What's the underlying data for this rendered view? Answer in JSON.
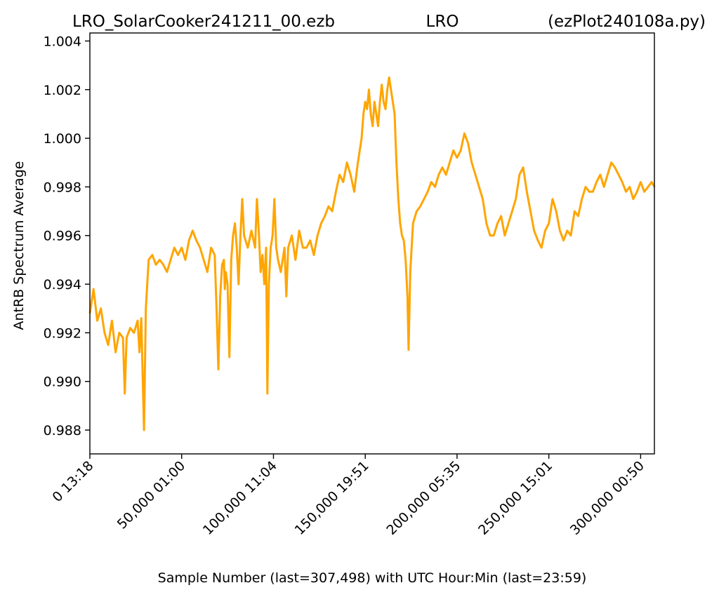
{
  "chart_data": {
    "type": "line",
    "title_left": "LRO_SolarCooker241211_00.ezb",
    "title_center": "LRO",
    "title_right": "(ezPlot240108a.py)",
    "xlabel": "Sample Number (last=307,498) with UTC Hour:Min (last=23:59)",
    "ylabel": "AntRB Spectrum Average",
    "xlim": [
      0,
      307498
    ],
    "ylim": [
      0.98702,
      1.00433
    ],
    "x_ticks": [
      {
        "value": 0,
        "label": "0  13:18"
      },
      {
        "value": 50000,
        "label": "50,000  01:00"
      },
      {
        "value": 100000,
        "label": "100,000  11:04"
      },
      {
        "value": 150000,
        "label": "150,000  19:51"
      },
      {
        "value": 200000,
        "label": "200,000  05:35"
      },
      {
        "value": 250000,
        "label": "250,000  15:01"
      },
      {
        "value": 300000,
        "label": "300,000  00:50"
      }
    ],
    "y_ticks": [
      {
        "value": 0.988,
        "label": "0.988"
      },
      {
        "value": 0.99,
        "label": "0.990"
      },
      {
        "value": 0.992,
        "label": "0.992"
      },
      {
        "value": 0.994,
        "label": "0.994"
      },
      {
        "value": 0.996,
        "label": "0.996"
      },
      {
        "value": 0.998,
        "label": "0.998"
      },
      {
        "value": 1.0,
        "label": "1.000"
      },
      {
        "value": 1.002,
        "label": "1.002"
      },
      {
        "value": 1.004,
        "label": "1.004"
      }
    ],
    "grid": false,
    "series": [
      {
        "color": "#ffa500",
        "points": [
          [
            0,
            0.9928
          ],
          [
            2000,
            0.9938
          ],
          [
            4000,
            0.9925
          ],
          [
            6000,
            0.993
          ],
          [
            8000,
            0.992
          ],
          [
            10000,
            0.9915
          ],
          [
            12000,
            0.9925
          ],
          [
            14000,
            0.9912
          ],
          [
            16000,
            0.992
          ],
          [
            18000,
            0.9918
          ],
          [
            19000,
            0.9895
          ],
          [
            20000,
            0.9918
          ],
          [
            22000,
            0.9922
          ],
          [
            24000,
            0.992
          ],
          [
            26000,
            0.9925
          ],
          [
            27000,
            0.9912
          ],
          [
            28000,
            0.9926
          ],
          [
            29500,
            0.988
          ],
          [
            30500,
            0.993
          ],
          [
            32000,
            0.995
          ],
          [
            34000,
            0.9952
          ],
          [
            36000,
            0.9948
          ],
          [
            38000,
            0.995
          ],
          [
            40000,
            0.9948
          ],
          [
            42000,
            0.9945
          ],
          [
            44000,
            0.995
          ],
          [
            46000,
            0.9955
          ],
          [
            48000,
            0.9952
          ],
          [
            50000,
            0.9955
          ],
          [
            52000,
            0.995
          ],
          [
            54000,
            0.9958
          ],
          [
            56000,
            0.9962
          ],
          [
            58000,
            0.9958
          ],
          [
            60000,
            0.9955
          ],
          [
            62000,
            0.995
          ],
          [
            64000,
            0.9945
          ],
          [
            66000,
            0.9955
          ],
          [
            68000,
            0.9952
          ],
          [
            69000,
            0.993
          ],
          [
            70000,
            0.9905
          ],
          [
            71000,
            0.9935
          ],
          [
            72000,
            0.9948
          ],
          [
            73000,
            0.995
          ],
          [
            74000,
            0.9945
          ],
          [
            75000,
            0.994
          ],
          [
            76000,
            0.991
          ],
          [
            77000,
            0.995
          ],
          [
            78000,
            0.996
          ],
          [
            79000,
            0.9965
          ],
          [
            73500,
            0.9938
          ],
          [
            80000,
            0.9955
          ],
          [
            81000,
            0.994
          ],
          [
            82000,
            0.996
          ],
          [
            83000,
            0.9975
          ],
          [
            84000,
            0.996
          ],
          [
            86000,
            0.9955
          ],
          [
            88000,
            0.9962
          ],
          [
            90000,
            0.9955
          ],
          [
            91000,
            0.9975
          ],
          [
            92000,
            0.9962
          ],
          [
            93000,
            0.9945
          ],
          [
            94000,
            0.9952
          ],
          [
            95000,
            0.994
          ],
          [
            96000,
            0.9955
          ],
          [
            96700,
            0.9895
          ],
          [
            97500,
            0.994
          ],
          [
            98500,
            0.9955
          ],
          [
            99500,
            0.996
          ],
          [
            100500,
            0.9975
          ],
          [
            101500,
            0.9955
          ],
          [
            102500,
            0.995
          ],
          [
            104000,
            0.9945
          ],
          [
            106000,
            0.9955
          ],
          [
            107000,
            0.9935
          ],
          [
            108000,
            0.9955
          ],
          [
            110000,
            0.996
          ],
          [
            112000,
            0.995
          ],
          [
            114000,
            0.9962
          ],
          [
            116000,
            0.9955
          ],
          [
            118000,
            0.9955
          ],
          [
            120000,
            0.9958
          ],
          [
            122000,
            0.9952
          ],
          [
            124000,
            0.996
          ],
          [
            126000,
            0.9965
          ],
          [
            128000,
            0.9968
          ],
          [
            130000,
            0.9972
          ],
          [
            132000,
            0.997
          ],
          [
            134000,
            0.9978
          ],
          [
            136000,
            0.9985
          ],
          [
            138000,
            0.9982
          ],
          [
            140000,
            0.999
          ],
          [
            142000,
            0.9985
          ],
          [
            144000,
            0.9978
          ],
          [
            146000,
            0.999
          ],
          [
            148000,
            1.0
          ],
          [
            149000,
            1.001
          ],
          [
            150000,
            1.0015
          ],
          [
            151000,
            1.0012
          ],
          [
            152000,
            1.002
          ],
          [
            153000,
            1.001
          ],
          [
            154000,
            1.0005
          ],
          [
            155000,
            1.0015
          ],
          [
            156000,
            1.001
          ],
          [
            157000,
            1.0005
          ],
          [
            158000,
            1.0015
          ],
          [
            159000,
            1.0022
          ],
          [
            160000,
            1.0015
          ],
          [
            161000,
            1.0012
          ],
          [
            162000,
            1.002
          ],
          [
            163000,
            1.0025
          ],
          [
            164000,
            1.002
          ],
          [
            165000,
            1.0015
          ],
          [
            166000,
            1.001
          ],
          [
            167000,
            0.999
          ],
          [
            168000,
            0.9975
          ],
          [
            169000,
            0.9965
          ],
          [
            170000,
            0.996
          ],
          [
            171000,
            0.9958
          ],
          [
            172000,
            0.995
          ],
          [
            173000,
            0.9935
          ],
          [
            173600,
            0.9913
          ],
          [
            174500,
            0.9945
          ],
          [
            176000,
            0.9965
          ],
          [
            178000,
            0.997
          ],
          [
            180000,
            0.9972
          ],
          [
            182000,
            0.9975
          ],
          [
            184000,
            0.9978
          ],
          [
            186000,
            0.9982
          ],
          [
            188000,
            0.998
          ],
          [
            190000,
            0.9985
          ],
          [
            192000,
            0.9988
          ],
          [
            194000,
            0.9985
          ],
          [
            196000,
            0.999
          ],
          [
            198000,
            0.9995
          ],
          [
            200000,
            0.9992
          ],
          [
            202000,
            0.9995
          ],
          [
            204000,
            1.0002
          ],
          [
            206000,
            0.9998
          ],
          [
            208000,
            0.999
          ],
          [
            210000,
            0.9985
          ],
          [
            212000,
            0.998
          ],
          [
            214000,
            0.9975
          ],
          [
            216000,
            0.9965
          ],
          [
            218000,
            0.996
          ],
          [
            220000,
            0.996
          ],
          [
            222000,
            0.9965
          ],
          [
            224000,
            0.9968
          ],
          [
            226000,
            0.996
          ],
          [
            228000,
            0.9965
          ],
          [
            230000,
            0.997
          ],
          [
            232000,
            0.9975
          ],
          [
            234000,
            0.9985
          ],
          [
            236000,
            0.9988
          ],
          [
            238000,
            0.9978
          ],
          [
            240000,
            0.997
          ],
          [
            242000,
            0.9962
          ],
          [
            244000,
            0.9958
          ],
          [
            246000,
            0.9955
          ],
          [
            248000,
            0.9962
          ],
          [
            250000,
            0.9965
          ],
          [
            252000,
            0.9975
          ],
          [
            254000,
            0.997
          ],
          [
            256000,
            0.9962
          ],
          [
            258000,
            0.9958
          ],
          [
            260000,
            0.9962
          ],
          [
            262000,
            0.996
          ],
          [
            264000,
            0.997
          ],
          [
            266000,
            0.9968
          ],
          [
            268000,
            0.9975
          ],
          [
            270000,
            0.998
          ],
          [
            272000,
            0.9978
          ],
          [
            274000,
            0.9978
          ],
          [
            276000,
            0.9982
          ],
          [
            278000,
            0.9985
          ],
          [
            280000,
            0.998
          ],
          [
            282000,
            0.9985
          ],
          [
            284000,
            0.999
          ],
          [
            286000,
            0.9988
          ],
          [
            288000,
            0.9985
          ],
          [
            290000,
            0.9982
          ],
          [
            292000,
            0.9978
          ],
          [
            294000,
            0.998
          ],
          [
            296000,
            0.9975
          ],
          [
            298000,
            0.9978
          ],
          [
            300000,
            0.9982
          ],
          [
            302000,
            0.9978
          ],
          [
            304000,
            0.998
          ],
          [
            306000,
            0.9982
          ],
          [
            307498,
            0.998
          ]
        ]
      }
    ]
  }
}
